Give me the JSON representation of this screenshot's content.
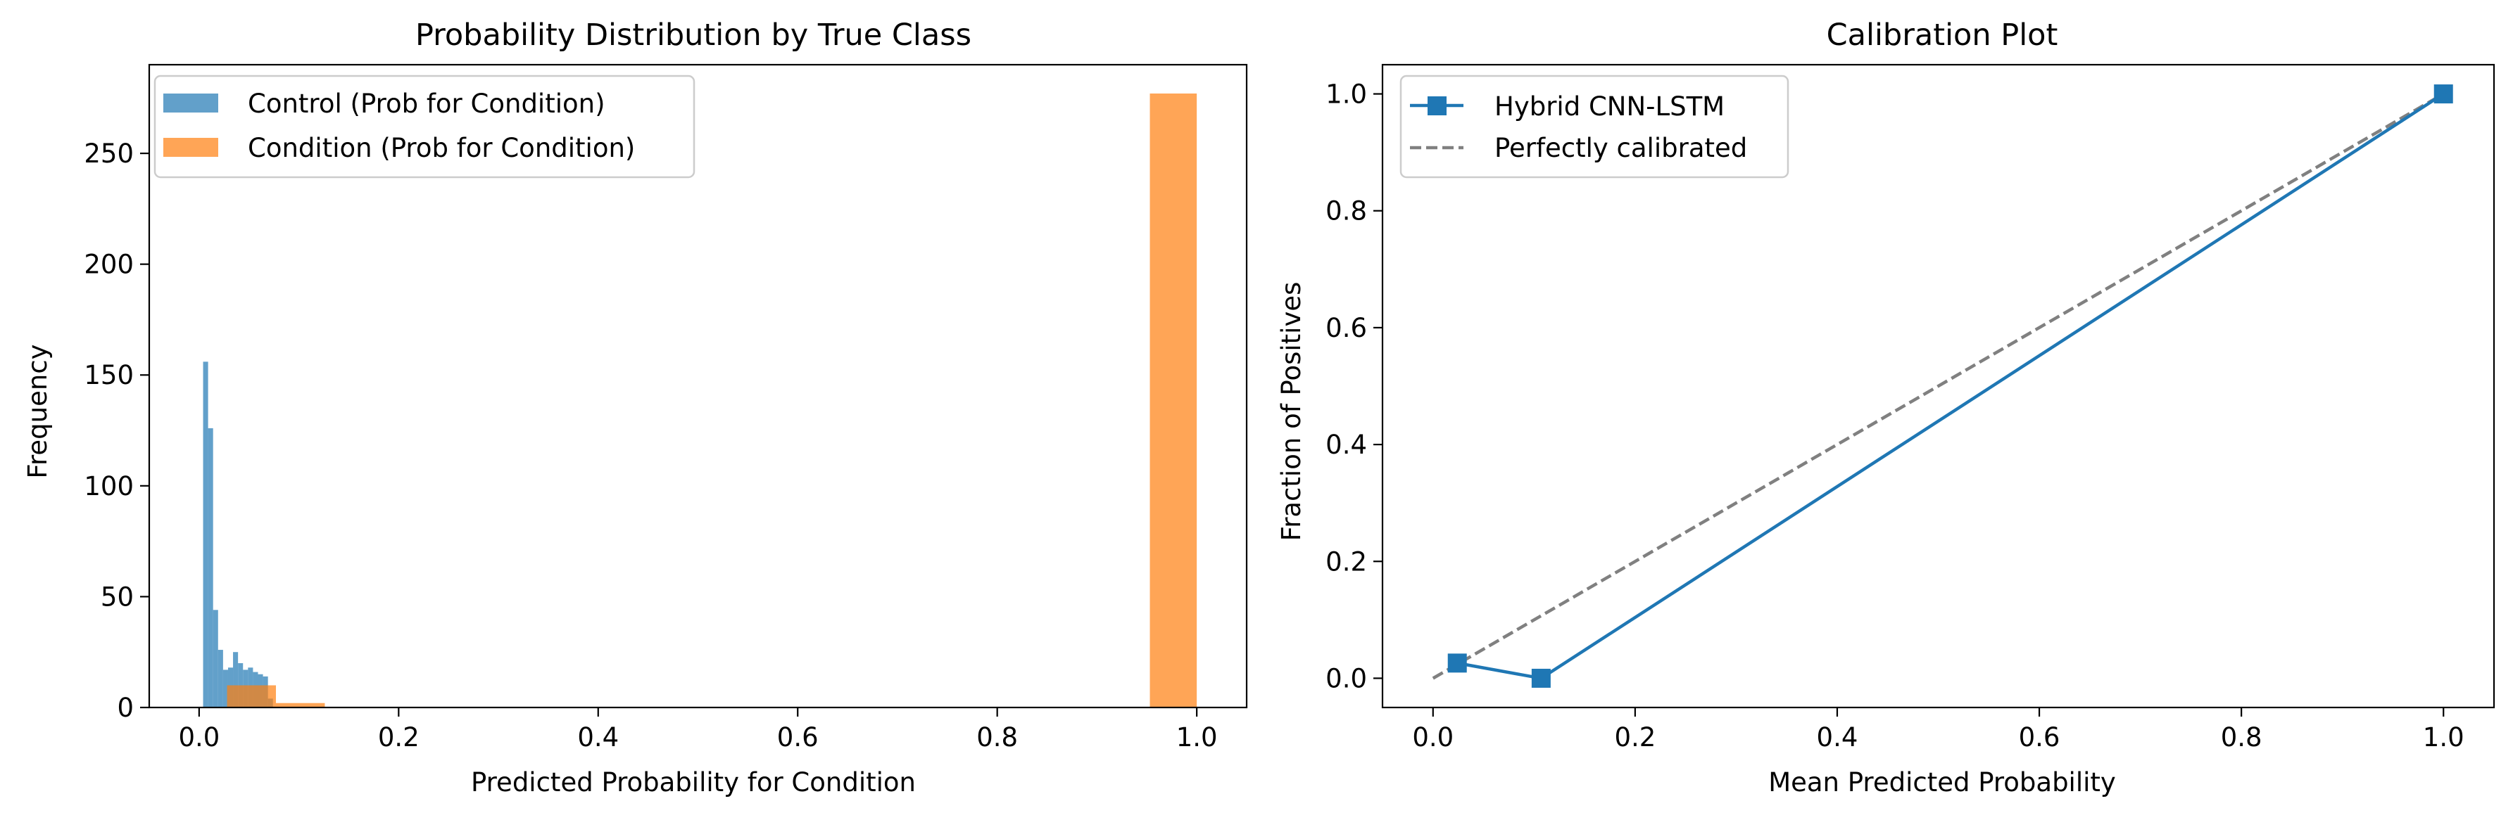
{
  "chart_data": [
    {
      "type": "bar",
      "subtype": "overlaid-histogram",
      "title": "Probability Distribution by True Class",
      "xlabel": "Predicted Probability for Condition",
      "ylabel": "Frequency",
      "xlim": [
        -0.05,
        1.05
      ],
      "ylim": [
        0,
        290
      ],
      "xticks": [
        0.0,
        0.2,
        0.4,
        0.6,
        0.8,
        1.0
      ],
      "xtick_labels": [
        "0.0",
        "0.2",
        "0.4",
        "0.6",
        "0.8",
        "1.0"
      ],
      "yticks": [
        0,
        50,
        100,
        150,
        200,
        250
      ],
      "ytick_labels": [
        "0",
        "50",
        "100",
        "150",
        "200",
        "250"
      ],
      "legend_position": "top-left",
      "grid": false,
      "series": [
        {
          "name": "Control (Prob for Condition)",
          "color": "#1f77b4",
          "alpha": 0.7,
          "bins": [
            {
              "x0": 0.004,
              "x1": 0.009,
              "value": 156
            },
            {
              "x0": 0.009,
              "x1": 0.014,
              "value": 126
            },
            {
              "x0": 0.014,
              "x1": 0.019,
              "value": 44
            },
            {
              "x0": 0.019,
              "x1": 0.024,
              "value": 26
            },
            {
              "x0": 0.024,
              "x1": 0.029,
              "value": 17
            },
            {
              "x0": 0.029,
              "x1": 0.034,
              "value": 18
            },
            {
              "x0": 0.034,
              "x1": 0.039,
              "value": 25
            },
            {
              "x0": 0.039,
              "x1": 0.044,
              "value": 20
            },
            {
              "x0": 0.044,
              "x1": 0.049,
              "value": 17
            },
            {
              "x0": 0.049,
              "x1": 0.054,
              "value": 18
            },
            {
              "x0": 0.054,
              "x1": 0.059,
              "value": 16
            },
            {
              "x0": 0.059,
              "x1": 0.064,
              "value": 15
            },
            {
              "x0": 0.064,
              "x1": 0.069,
              "value": 14
            },
            {
              "x0": 0.069,
              "x1": 0.074,
              "value": 4
            }
          ]
        },
        {
          "name": "Condition (Prob for Condition)",
          "color": "#ff7f0e",
          "alpha": 0.7,
          "bins": [
            {
              "x0": 0.028,
              "x1": 0.077,
              "value": 10
            },
            {
              "x0": 0.077,
              "x1": 0.126,
              "value": 2
            },
            {
              "x0": 0.953,
              "x1": 1.0,
              "value": 277
            }
          ]
        }
      ]
    },
    {
      "type": "line",
      "title": "Calibration Plot",
      "xlabel": "Mean Predicted Probability",
      "ylabel": "Fraction of Positives",
      "xlim": [
        -0.05,
        1.05
      ],
      "ylim": [
        -0.05,
        1.05
      ],
      "xticks": [
        0.0,
        0.2,
        0.4,
        0.6,
        0.8,
        1.0
      ],
      "xtick_labels": [
        "0.0",
        "0.2",
        "0.4",
        "0.6",
        "0.8",
        "1.0"
      ],
      "yticks": [
        0.0,
        0.2,
        0.4,
        0.6,
        0.8,
        1.0
      ],
      "ytick_labels": [
        "0.0",
        "0.2",
        "0.4",
        "0.6",
        "0.8",
        "1.0"
      ],
      "legend_position": "top-left",
      "grid": false,
      "series": [
        {
          "name": "Hybrid CNN-LSTM",
          "color": "#1f77b4",
          "marker": "square",
          "linestyle": "solid",
          "x": [
            0.024,
            0.107,
            1.0
          ],
          "y": [
            0.026,
            0.0,
            1.0
          ]
        },
        {
          "name": "Perfectly calibrated",
          "color": "#808080",
          "linestyle": "dashed",
          "x": [
            0.0,
            1.0
          ],
          "y": [
            0.0,
            1.0
          ]
        }
      ]
    }
  ]
}
